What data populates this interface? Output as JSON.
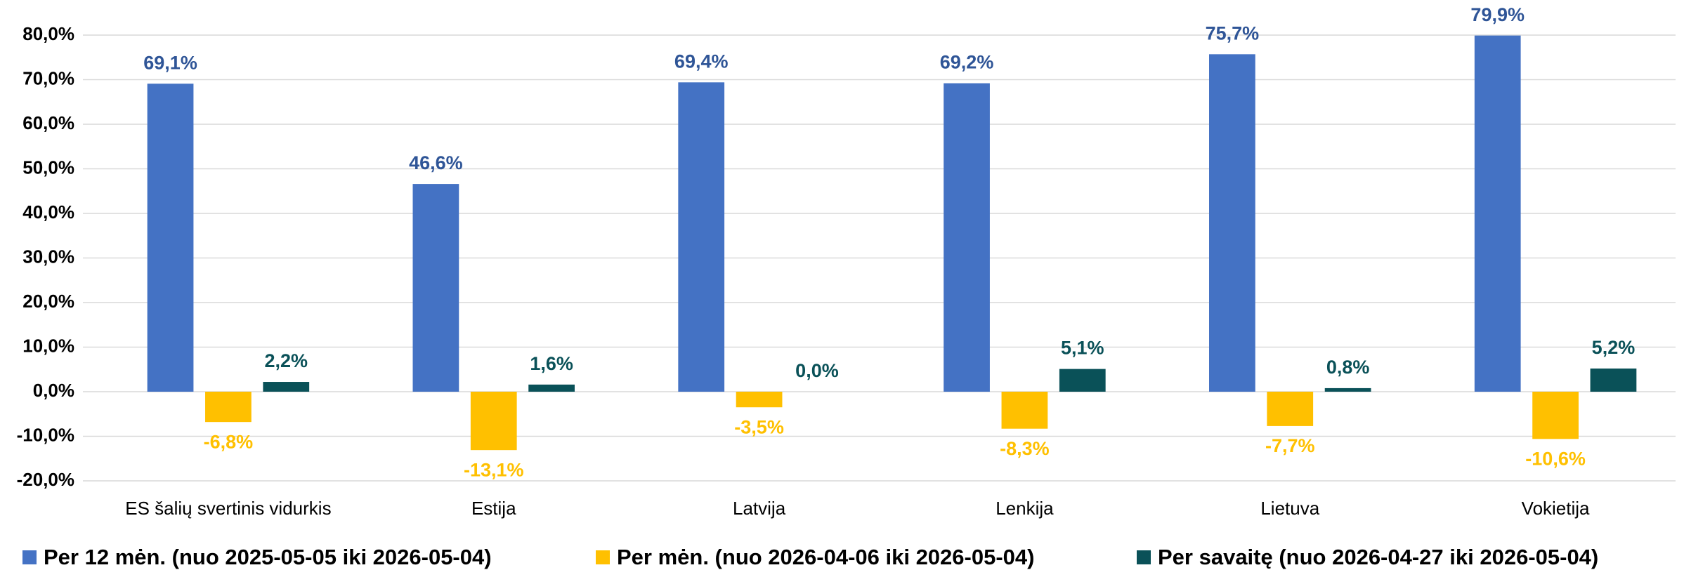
{
  "chart_data": {
    "type": "bar",
    "categories": [
      "ES šalių svertinis vidurkis",
      "Estija",
      "Latvija",
      "Lenkija",
      "Lietuva",
      "Vokietija"
    ],
    "series": [
      {
        "name": "Per 12 mėn. (nuo 2025-05-05 iki 2026-05-04)",
        "color": "#4472c4",
        "label_color": "#2f5597",
        "values": [
          69.1,
          46.6,
          69.4,
          69.2,
          75.7,
          79.9
        ],
        "value_labels": [
          "69,1%",
          "46,6%",
          "69,4%",
          "69,2%",
          "75,7%",
          "79,9%"
        ]
      },
      {
        "name": "Per mėn. (nuo 2026-04-06 iki 2026-05-04)",
        "color": "#ffc000",
        "label_color": "#ffc000",
        "values": [
          -6.8,
          -13.1,
          -3.5,
          -8.3,
          -7.7,
          -10.6
        ],
        "value_labels": [
          "-6,8%",
          "-13,1%",
          "-3,5%",
          "-8,3%",
          "-7,7%",
          "-10,6%"
        ]
      },
      {
        "name": "Per savaitę (nuo 2026-04-27 iki 2026-05-04)",
        "color": "#0a5158",
        "label_color": "#0a5158",
        "values": [
          2.2,
          1.6,
          0.0,
          5.1,
          0.8,
          5.2
        ],
        "value_labels": [
          "2,2%",
          "1,6%",
          "0,0%",
          "5,1%",
          "0,8%",
          "5,2%"
        ]
      }
    ],
    "ylim": [
      -20,
      80
    ],
    "yticks": [
      {
        "value": -20,
        "label": "-20,0%"
      },
      {
        "value": -10,
        "label": "-10,0%"
      },
      {
        "value": 0,
        "label": "0,0%"
      },
      {
        "value": 10,
        "label": "10,0%"
      },
      {
        "value": 20,
        "label": "20,0%"
      },
      {
        "value": 30,
        "label": "30,0%"
      },
      {
        "value": 40,
        "label": "40,0%"
      },
      {
        "value": 50,
        "label": "50,0%"
      },
      {
        "value": 60,
        "label": "60,0%"
      },
      {
        "value": 70,
        "label": "70,0%"
      },
      {
        "value": 80,
        "label": "80,0%"
      }
    ],
    "grid": true,
    "legend": "bottom"
  }
}
